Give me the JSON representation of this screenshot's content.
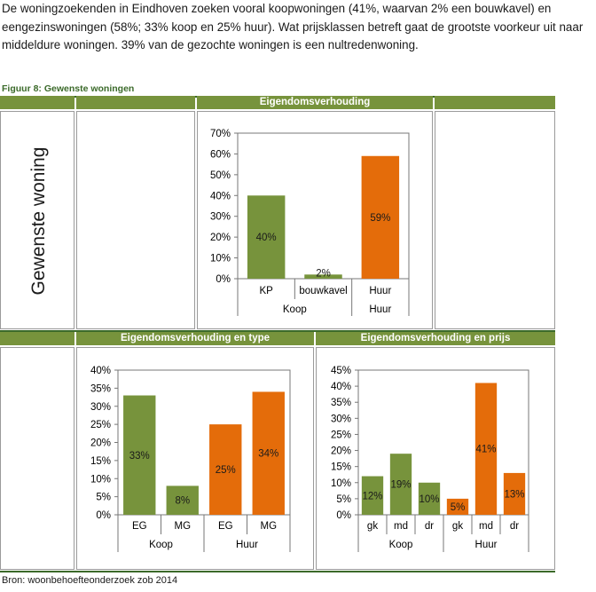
{
  "intro_text": "De woningzoekenden in Eindhoven zoeken vooral koopwoningen (41%, waarvan 2% een bouwkavel) en eengezinswoningen (58%; 33% koop en 25% huur). Wat prijsklassen betreft gaat de grootste voorkeur uit naar middeldure woningen. 39% van de gezochte woningen is een nultredenwoning.",
  "figure_title": "Figuur 8: Gewenste woningen",
  "row_label": "Gewenste woning",
  "source": "Bron: woonbehoefteonderzoek zob 2014",
  "colors": {
    "koop": "#77933c",
    "huur": "#e46c0a",
    "header": "#77933c",
    "border": "#9a9a9a"
  },
  "chart_data": [
    {
      "type": "bar",
      "title": "Eigendomsverhouding",
      "categories": [
        "KP",
        "bouwkavel",
        "Huur"
      ],
      "groups": [
        {
          "label": "Koop",
          "categories": [
            "KP",
            "bouwkavel"
          ]
        },
        {
          "label": "Huur",
          "categories": []
        }
      ],
      "values": [
        40,
        2,
        59
      ],
      "data_labels": [
        "40%",
        "2%",
        "59%"
      ],
      "colors": [
        "#77933c",
        "#77933c",
        "#e46c0a"
      ],
      "ylim": [
        0,
        70
      ],
      "yticks": [
        "0%",
        "10%",
        "20%",
        "30%",
        "40%",
        "50%",
        "60%",
        "70%"
      ]
    },
    {
      "type": "bar",
      "title": "Eigendomsverhouding en type",
      "categories": [
        "EG",
        "MG",
        "EG",
        "MG"
      ],
      "groups": [
        {
          "label": "Koop",
          "categories": [
            "EG",
            "MG"
          ]
        },
        {
          "label": "Huur",
          "categories": [
            "EG",
            "MG"
          ]
        }
      ],
      "values": [
        33,
        8,
        25,
        34
      ],
      "data_labels": [
        "33%",
        "8%",
        "25%",
        "34%"
      ],
      "colors": [
        "#77933c",
        "#77933c",
        "#e46c0a",
        "#e46c0a"
      ],
      "ylim": [
        0,
        40
      ],
      "yticks": [
        "0%",
        "5%",
        "10%",
        "15%",
        "20%",
        "25%",
        "30%",
        "35%",
        "40%"
      ]
    },
    {
      "type": "bar",
      "title": "Eigendomsverhouding en prijs",
      "categories": [
        "gk",
        "md",
        "dr",
        "gk",
        "md",
        "dr"
      ],
      "groups": [
        {
          "label": "Koop",
          "categories": [
            "gk",
            "md",
            "dr"
          ]
        },
        {
          "label": "Huur",
          "categories": [
            "gk",
            "md",
            "dr"
          ]
        }
      ],
      "values": [
        12,
        19,
        10,
        5,
        41,
        13
      ],
      "data_labels": [
        "12%",
        "19%",
        "10%",
        "5%",
        "41%",
        "13%"
      ],
      "colors": [
        "#77933c",
        "#77933c",
        "#77933c",
        "#e46c0a",
        "#e46c0a",
        "#e46c0a"
      ],
      "ylim": [
        0,
        45
      ],
      "yticks": [
        "0%",
        "5%",
        "10%",
        "15%",
        "20%",
        "25%",
        "30%",
        "35%",
        "40%",
        "45%"
      ]
    }
  ]
}
